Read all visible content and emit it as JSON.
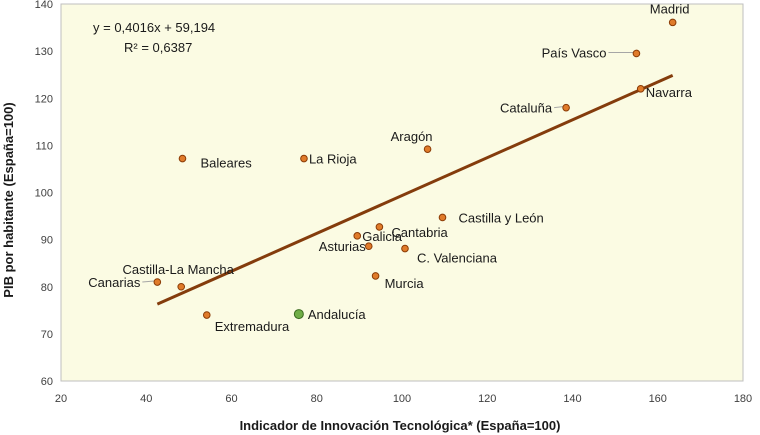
{
  "chart_data": {
    "type": "scatter",
    "xlabel": "Indicador de Innovación Tecnológica* (España=100)",
    "ylabel": "PIB por habitante (España=100)",
    "xlim": [
      20,
      180
    ],
    "ylim": [
      60,
      140
    ],
    "xticks": [
      20,
      40,
      60,
      80,
      100,
      120,
      140,
      160,
      180
    ],
    "yticks": [
      60,
      70,
      80,
      90,
      100,
      110,
      120,
      130,
      140
    ],
    "grid": false,
    "points": [
      {
        "label": "Madrid",
        "x": 163.5,
        "y": 136.1,
        "color": "#e07b2a"
      },
      {
        "label": "País Vasco",
        "x": 155,
        "y": 129.5,
        "color": "#e07b2a"
      },
      {
        "label": "Navarra",
        "x": 156,
        "y": 122,
        "color": "#e07b2a"
      },
      {
        "label": "Cataluña",
        "x": 138.5,
        "y": 118,
        "color": "#e07b2a"
      },
      {
        "label": "Aragón",
        "x": 106,
        "y": 109.2,
        "color": "#e07b2a"
      },
      {
        "label": "Baleares",
        "x": 48.5,
        "y": 107.2,
        "color": "#e07b2a"
      },
      {
        "label": "La Rioja",
        "x": 77,
        "y": 107.2,
        "color": "#e07b2a"
      },
      {
        "label": "Castilla y León",
        "x": 109.5,
        "y": 94.7,
        "color": "#e07b2a"
      },
      {
        "label": "Cantabria",
        "x": 94.7,
        "y": 92.7,
        "color": "#e07b2a"
      },
      {
        "label": "Galicia",
        "x": 89.5,
        "y": 90.8,
        "color": "#e07b2a"
      },
      {
        "label": "Asturias",
        "x": 92.2,
        "y": 88.6,
        "color": "#e07b2a"
      },
      {
        "label": "C. Valenciana",
        "x": 100.7,
        "y": 88.1,
        "color": "#e07b2a"
      },
      {
        "label": "Murcia",
        "x": 93.8,
        "y": 82.3,
        "color": "#e07b2a"
      },
      {
        "label": "Castilla-La Mancha",
        "x": 48.2,
        "y": 80,
        "color": "#e07b2a"
      },
      {
        "label": "Canarias",
        "x": 42.6,
        "y": 81,
        "color": "#e07b2a"
      },
      {
        "label": "Extremadura",
        "x": 54.2,
        "y": 74,
        "color": "#e07b2a"
      },
      {
        "label": "Andalucía",
        "x": 75.8,
        "y": 74.2,
        "color": "#70ad47"
      }
    ],
    "trendline": {
      "equation": "y = 0,4016x + 59,194",
      "r2": "R² = 0,6387",
      "slope": 0.4016,
      "intercept": 59.194,
      "x_range": [
        42.6,
        163.5
      ],
      "color": "#843c0c"
    },
    "plot_background": "#fbfbe3"
  }
}
